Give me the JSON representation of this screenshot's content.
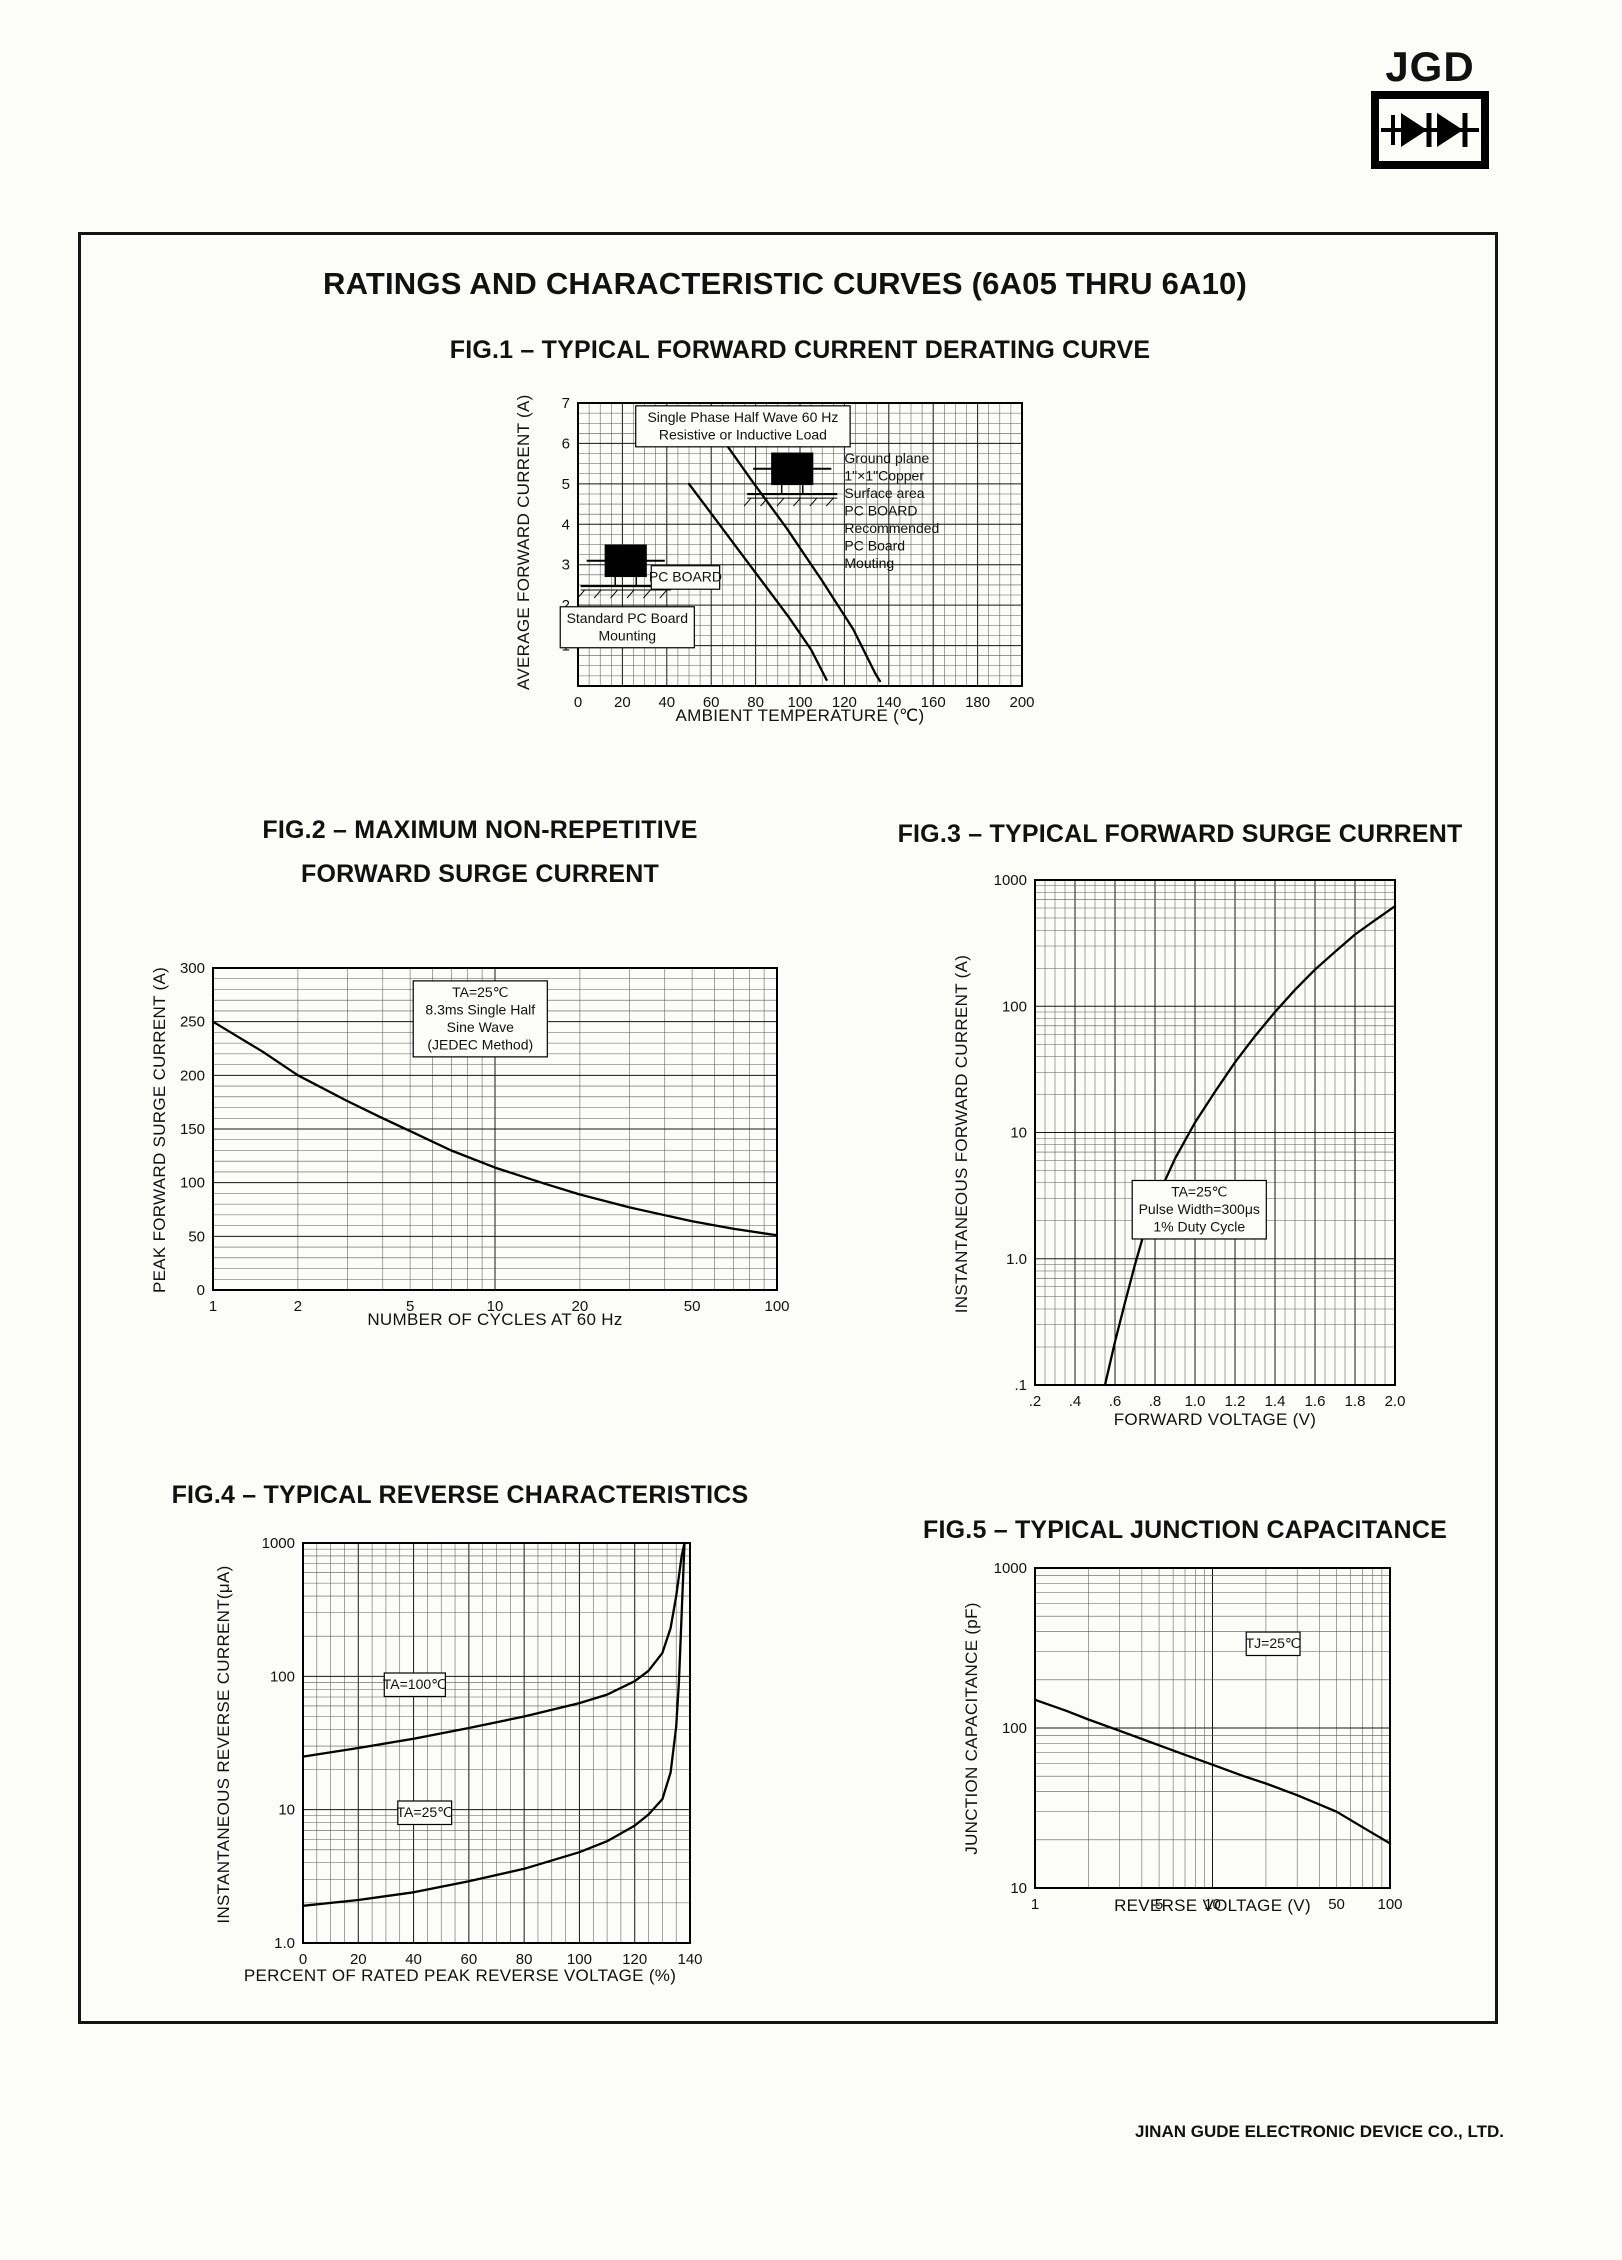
{
  "logo": {
    "text": "JGD",
    "icon": "dual-diode-icon"
  },
  "page_title": "RATINGS AND CHARACTERISTIC CURVES (6A05 THRU 6A10)",
  "footer_text": "JINAN GUDE ELECTRONIC DEVICE CO., LTD.",
  "chart_data": [
    {
      "id": "fig1",
      "type": "line",
      "title": "FIG.1 – TYPICAL FORWARD CURRENT DERATING CURVE",
      "xlabel": "AMBIENT TEMPERATURE (℃)",
      "ylabel": "AVERAGE FORWARD CURRENT (A)",
      "x": {
        "scale": "linear",
        "min": 0,
        "max": 200,
        "minor": 5,
        "major": 20,
        "ticks": [
          {
            "v": 0,
            "l": "0"
          },
          {
            "v": 20,
            "l": "20"
          },
          {
            "v": 40,
            "l": "40"
          },
          {
            "v": 60,
            "l": "60"
          },
          {
            "v": 80,
            "l": "80"
          },
          {
            "v": 100,
            "l": "100"
          },
          {
            "v": 120,
            "l": "120"
          },
          {
            "v": 140,
            "l": "140"
          },
          {
            "v": 160,
            "l": "160"
          },
          {
            "v": 180,
            "l": "180"
          },
          {
            "v": 200,
            "l": "200"
          }
        ]
      },
      "y": {
        "scale": "linear",
        "min": 0,
        "max": 7,
        "minor": 0.25,
        "major": 1,
        "ticks": [
          {
            "v": 1,
            "l": "1"
          },
          {
            "v": 2,
            "l": "2"
          },
          {
            "v": 3,
            "l": "3"
          },
          {
            "v": 4,
            "l": "4"
          },
          {
            "v": 5,
            "l": "5"
          },
          {
            "v": 6,
            "l": "6"
          },
          {
            "v": 7,
            "l": "7"
          }
        ]
      },
      "series": [
        {
          "name": "recommended-pc-board-mounting",
          "points": [
            [
              62,
              6.35
            ],
            [
              78,
              5.1
            ],
            [
              94,
              3.9
            ],
            [
              110,
              2.6
            ],
            [
              124,
              1.4
            ],
            [
              134,
              0.3
            ],
            [
              136,
              0.12
            ]
          ]
        },
        {
          "name": "standard-pc-board-mounting",
          "points": [
            [
              50,
              5.0
            ],
            [
              65,
              3.9
            ],
            [
              80,
              2.8
            ],
            [
              95,
              1.7
            ],
            [
              105,
              0.9
            ],
            [
              112,
              0.15
            ]
          ]
        }
      ],
      "annotations": [
        {
          "name": "load-condition-note",
          "lines": [
            "Single Phase Half Wave 60 Hz",
            "Resistive or Inductive Load"
          ],
          "fx": 0.13,
          "fy": 0.01,
          "box": true
        },
        {
          "name": "ground-plane-note",
          "lines": [
            "Ground plane",
            "1\"×1\"Copper",
            "Surface area",
            "PC BOARD",
            "Recommended",
            "PC Board",
            "Mouting"
          ],
          "fx": 0.6,
          "fy": 0.155,
          "box": false
        },
        {
          "name": "pc-board-label",
          "lines": [
            "PC BOARD"
          ],
          "fx": 0.165,
          "fy": 0.575,
          "box": true
        },
        {
          "name": "standard-mounting-note",
          "lines": [
            "Standard PC Board",
            "Mounting"
          ],
          "fx": -0.04,
          "fy": 0.72,
          "box": true
        }
      ],
      "illustrations": [
        {
          "name": "device-on-standard-pc-board",
          "fx": 0.06,
          "fy": 0.5
        },
        {
          "name": "device-on-ground-plane-pc-board",
          "fx": 0.435,
          "fy": 0.175
        }
      ]
    },
    {
      "id": "fig2",
      "type": "line",
      "title_lines": [
        "FIG.2 – MAXIMUM NON-REPETITIVE",
        "FORWARD SURGE CURRENT"
      ],
      "xlabel": "NUMBER OF CYCLES AT 60 Hz",
      "ylabel": "PEAK FORWARD SURGE CURRENT (A)",
      "x": {
        "scale": "log",
        "min": 1,
        "max": 100,
        "ticks": [
          {
            "v": 1,
            "l": "1"
          },
          {
            "v": 2,
            "l": "2"
          },
          {
            "v": 5,
            "l": "5"
          },
          {
            "v": 10,
            "l": "10"
          },
          {
            "v": 20,
            "l": "20"
          },
          {
            "v": 50,
            "l": "50"
          },
          {
            "v": 100,
            "l": "100"
          }
        ]
      },
      "y": {
        "scale": "linear",
        "min": 0,
        "max": 300,
        "minor": 10,
        "major": 50,
        "ticks": [
          {
            "v": 0,
            "l": "0"
          },
          {
            "v": 50,
            "l": "50"
          },
          {
            "v": 100,
            "l": "100"
          },
          {
            "v": 150,
            "l": "150"
          },
          {
            "v": 200,
            "l": "200"
          },
          {
            "v": 250,
            "l": "250"
          },
          {
            "v": 300,
            "l": "300"
          }
        ]
      },
      "series": [
        {
          "name": "peak-surge-current",
          "points": [
            [
              1,
              250
            ],
            [
              1.5,
              222
            ],
            [
              2,
              200
            ],
            [
              3,
              176
            ],
            [
              4,
              160
            ],
            [
              5,
              148
            ],
            [
              7,
              130
            ],
            [
              10,
              114
            ],
            [
              15,
              99
            ],
            [
              20,
              89
            ],
            [
              30,
              77
            ],
            [
              50,
              64
            ],
            [
              70,
              57
            ],
            [
              100,
              51
            ]
          ]
        }
      ],
      "annotations": [
        {
          "name": "test-condition-note",
          "lines": [
            "TA=25℃",
            "8.3ms Single Half",
            "Sine Wave",
            "(JEDEC Method)"
          ],
          "fx": 0.355,
          "fy": 0.04,
          "box": true
        }
      ]
    },
    {
      "id": "fig3",
      "type": "line",
      "title": "FIG.3 – TYPICAL FORWARD SURGE CURRENT",
      "xlabel": "FORWARD VOLTAGE (V)",
      "ylabel": "INSTANTANEOUS FORWARD CURRENT (A)",
      "x": {
        "scale": "linear",
        "min": 0.2,
        "max": 2.0,
        "minor": 0.05,
        "major": 0.2,
        "ticks": [
          {
            "v": 0.2,
            "l": ".2"
          },
          {
            "v": 0.4,
            "l": ".4"
          },
          {
            "v": 0.6,
            "l": ".6"
          },
          {
            "v": 0.8,
            "l": ".8"
          },
          {
            "v": 1.0,
            "l": "1.0"
          },
          {
            "v": 1.2,
            "l": "1.2"
          },
          {
            "v": 1.4,
            "l": "1.4"
          },
          {
            "v": 1.6,
            "l": "1.6"
          },
          {
            "v": 1.8,
            "l": "1.8"
          },
          {
            "v": 2.0,
            "l": "2.0"
          }
        ]
      },
      "y": {
        "scale": "log",
        "min": 0.1,
        "max": 1000,
        "ticks": [
          {
            "v": 1000,
            "l": "1000"
          },
          {
            "v": 100,
            "l": "100"
          },
          {
            "v": 10,
            "l": "10"
          },
          {
            "v": 1,
            "l": "1.0"
          },
          {
            "v": 0.1,
            "l": ".1"
          }
        ]
      },
      "series": [
        {
          "name": "instantaneous-forward-current",
          "points": [
            [
              0.55,
              0.1
            ],
            [
              0.6,
              0.22
            ],
            [
              0.65,
              0.45
            ],
            [
              0.7,
              0.9
            ],
            [
              0.75,
              1.7
            ],
            [
              0.8,
              2.8
            ],
            [
              0.9,
              6.2
            ],
            [
              1.0,
              12
            ],
            [
              1.1,
              21
            ],
            [
              1.2,
              36
            ],
            [
              1.3,
              58
            ],
            [
              1.4,
              90
            ],
            [
              1.5,
              135
            ],
            [
              1.6,
              195
            ],
            [
              1.7,
              270
            ],
            [
              1.8,
              370
            ],
            [
              1.9,
              480
            ],
            [
              2.0,
              620
            ]
          ]
        }
      ],
      "annotations": [
        {
          "name": "test-condition-note",
          "lines": [
            "TA=25℃",
            "Pulse Width=300μs",
            "1% Duty Cycle"
          ],
          "fx": 0.27,
          "fy": 0.595,
          "box": true
        }
      ]
    },
    {
      "id": "fig4",
      "type": "line",
      "title": "FIG.4 – TYPICAL REVERSE CHARACTERISTICS",
      "xlabel": "PERCENT OF RATED PEAK REVERSE VOLTAGE (%)",
      "ylabel": "INSTANTANEOUS REVERSE CURRENT(μA)",
      "x": {
        "scale": "linear",
        "min": 0,
        "max": 140,
        "minor": 5,
        "major": 20,
        "ticks": [
          {
            "v": 0,
            "l": "0"
          },
          {
            "v": 20,
            "l": "20"
          },
          {
            "v": 40,
            "l": "40"
          },
          {
            "v": 60,
            "l": "60"
          },
          {
            "v": 80,
            "l": "80"
          },
          {
            "v": 100,
            "l": "100"
          },
          {
            "v": 120,
            "l": "120"
          },
          {
            "v": 140,
            "l": "140"
          }
        ]
      },
      "y": {
        "scale": "log",
        "min": 1,
        "max": 1000,
        "ticks": [
          {
            "v": 1000,
            "l": "1000"
          },
          {
            "v": 100,
            "l": "100"
          },
          {
            "v": 10,
            "l": "10"
          },
          {
            "v": 1,
            "l": "1.0"
          }
        ]
      },
      "series": [
        {
          "name": "ta-100c",
          "points": [
            [
              0,
              25
            ],
            [
              20,
              29
            ],
            [
              40,
              34
            ],
            [
              60,
              41
            ],
            [
              80,
              50
            ],
            [
              100,
              63
            ],
            [
              110,
              73
            ],
            [
              120,
              92
            ],
            [
              125,
              110
            ],
            [
              130,
              150
            ],
            [
              133,
              230
            ],
            [
              135,
              400
            ],
            [
              137,
              800
            ],
            [
              138,
              1000
            ]
          ]
        },
        {
          "name": "ta-25c",
          "points": [
            [
              0,
              1.9
            ],
            [
              20,
              2.1
            ],
            [
              40,
              2.4
            ],
            [
              60,
              2.9
            ],
            [
              80,
              3.6
            ],
            [
              100,
              4.8
            ],
            [
              110,
              5.8
            ],
            [
              120,
              7.6
            ],
            [
              125,
              9.2
            ],
            [
              130,
              12
            ],
            [
              133,
              19
            ],
            [
              135,
              42
            ],
            [
              136,
              90
            ],
            [
              137,
              300
            ],
            [
              138,
              1000
            ]
          ]
        }
      ],
      "annotations": [
        {
          "name": "ta-100c-label",
          "lines": [
            "TA=100℃"
          ],
          "fx": 0.21,
          "fy": 0.325,
          "box": true
        },
        {
          "name": "ta-25c-label",
          "lines": [
            "TA=25℃"
          ],
          "fx": 0.245,
          "fy": 0.645,
          "box": true
        }
      ]
    },
    {
      "id": "fig5",
      "type": "line",
      "title": "FIG.5 – TYPICAL JUNCTION CAPACITANCE",
      "xlabel": "REVERSE VOLTAGE (V)",
      "ylabel": "JUNCTION CAPACITANCE (pF)",
      "x": {
        "scale": "log",
        "min": 1,
        "max": 100,
        "ticks": [
          {
            "v": 1,
            "l": "1"
          },
          {
            "v": 5,
            "l": "5"
          },
          {
            "v": 10,
            "l": "10"
          },
          {
            "v": 50,
            "l": "50"
          },
          {
            "v": 100,
            "l": "100"
          }
        ]
      },
      "y": {
        "scale": "log",
        "min": 10,
        "max": 1000,
        "ticks": [
          {
            "v": 1000,
            "l": "1000"
          },
          {
            "v": 100,
            "l": "100"
          },
          {
            "v": 10,
            "l": "10"
          }
        ]
      },
      "series": [
        {
          "name": "junction-capacitance",
          "points": [
            [
              1,
              150
            ],
            [
              1.5,
              128
            ],
            [
              2,
              113
            ],
            [
              3,
              96
            ],
            [
              5,
              78
            ],
            [
              7,
              68
            ],
            [
              10,
              59
            ],
            [
              15,
              50
            ],
            [
              20,
              45
            ],
            [
              30,
              38
            ],
            [
              50,
              30
            ],
            [
              70,
              24
            ],
            [
              100,
              19
            ]
          ]
        }
      ],
      "annotations": [
        {
          "name": "tj-25c-label",
          "lines": [
            "TJ=25℃"
          ],
          "fx": 0.595,
          "fy": 0.2,
          "box": true
        }
      ]
    }
  ]
}
